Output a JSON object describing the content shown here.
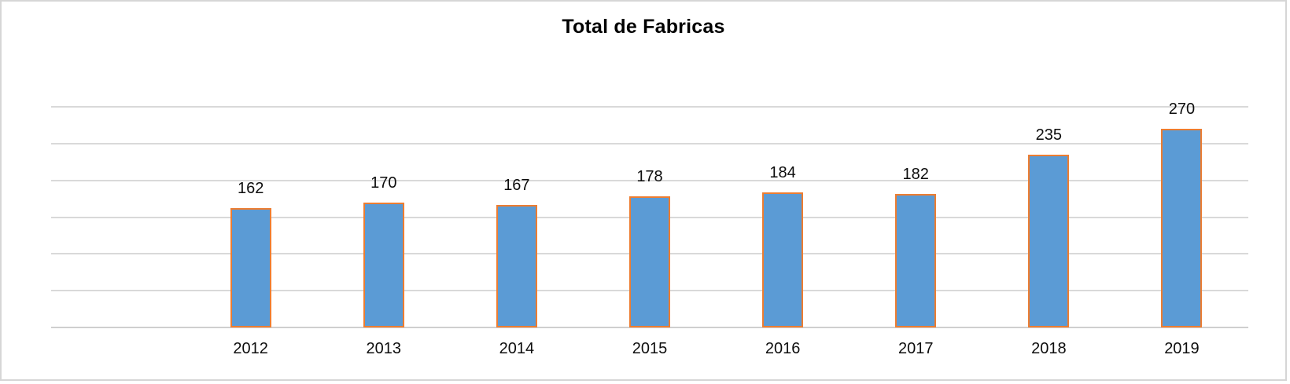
{
  "chart_data": {
    "type": "bar",
    "title": "Total de Fabricas",
    "categories": [
      "2012",
      "2013",
      "2014",
      "2015",
      "2016",
      "2017",
      "2018",
      "2019"
    ],
    "values": [
      162,
      170,
      167,
      178,
      184,
      182,
      235,
      270
    ],
    "xlabel": "",
    "ylabel": "",
    "ylim": [
      0,
      300
    ],
    "gridline_step": 50,
    "grid": true,
    "legend": "none",
    "data_labels": true,
    "y_axis_labels_visible": false,
    "leading_empty_slots": 1,
    "colors": {
      "bar_fill": "#5B9BD5",
      "bar_border": "#ED7D31",
      "gridline": "#D9D9D9",
      "axis_line": "#CFCFCF",
      "label_text": "#0D0D0D",
      "title_text": "#000000",
      "frame_border": "#D6D6D6",
      "background": "#FFFFFF"
    }
  }
}
